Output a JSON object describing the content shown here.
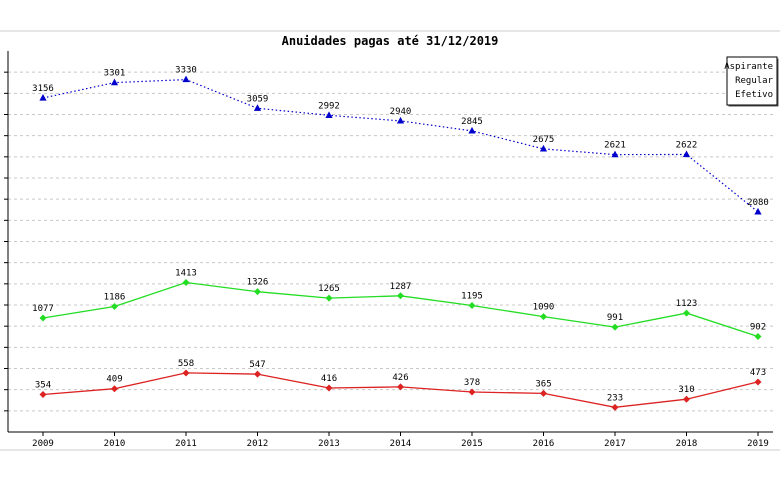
{
  "chart_data": {
    "type": "line",
    "title": "Anuidades pagas até 31/12/2019",
    "xlabel": "",
    "ylabel": "",
    "categories": [
      "2009",
      "2010",
      "2011",
      "2012",
      "2013",
      "2014",
      "2015",
      "2016",
      "2017",
      "2018",
      "2019"
    ],
    "ylim": [
      0,
      3600
    ],
    "grid": true,
    "legend_position": "top-right",
    "series": [
      {
        "name": "Aspirante",
        "color": "#0000cc",
        "line_style": "dotted",
        "marker": "triangle",
        "values": [
          3156,
          3301,
          3330,
          3059,
          2992,
          2940,
          2845,
          2675,
          2621,
          2622,
          2080
        ]
      },
      {
        "name": "Regular",
        "color": "#22dd22",
        "line_style": "solid",
        "marker": "diamond",
        "values": [
          1077,
          1186,
          1413,
          1326,
          1265,
          1287,
          1195,
          1090,
          991,
          1123,
          902
        ]
      },
      {
        "name": "Efetivo",
        "color": "#dd2222",
        "line_style": "solid",
        "marker": "diamond",
        "values": [
          354,
          409,
          558,
          547,
          416,
          426,
          378,
          365,
          233,
          310,
          473
        ]
      }
    ]
  }
}
